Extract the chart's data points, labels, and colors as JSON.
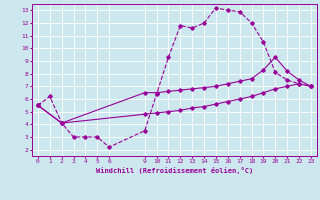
{
  "xlabel": "Windchill (Refroidissement éolien,°C)",
  "bg_color": "#cce8ee",
  "line_color": "#990099",
  "grid_color": "#ffffff",
  "xticks": [
    0,
    1,
    2,
    3,
    4,
    5,
    6,
    9,
    10,
    11,
    12,
    13,
    14,
    15,
    16,
    17,
    18,
    19,
    20,
    21,
    22,
    23
  ],
  "yticks": [
    2,
    3,
    4,
    5,
    6,
    7,
    8,
    9,
    10,
    11,
    12,
    13
  ],
  "xlim": [
    -0.5,
    23.5
  ],
  "ylim": [
    1.5,
    13.5
  ],
  "line1_x": [
    0,
    1,
    2,
    3,
    4,
    5,
    6,
    9,
    10,
    11,
    12,
    13,
    14,
    15,
    16,
    17,
    18,
    19,
    20,
    21,
    22,
    23
  ],
  "line1_y": [
    5.5,
    6.2,
    4.1,
    3.0,
    3.0,
    3.0,
    2.2,
    3.5,
    6.4,
    9.3,
    11.8,
    11.6,
    12.0,
    13.2,
    13.0,
    12.9,
    12.0,
    10.5,
    8.1,
    7.5,
    7.2,
    7.0
  ],
  "line2_x": [
    0,
    2,
    9,
    10,
    11,
    12,
    13,
    14,
    15,
    16,
    17,
    18,
    19,
    20,
    21,
    22,
    23
  ],
  "line2_y": [
    5.5,
    4.1,
    6.5,
    6.5,
    6.6,
    6.7,
    6.8,
    6.9,
    7.0,
    7.2,
    7.4,
    7.6,
    8.3,
    9.3,
    8.2,
    7.5,
    7.0
  ],
  "line3_x": [
    0,
    2,
    9,
    10,
    11,
    12,
    13,
    14,
    15,
    16,
    17,
    18,
    19,
    20,
    21,
    22,
    23
  ],
  "line3_y": [
    5.5,
    4.1,
    4.8,
    4.9,
    5.0,
    5.1,
    5.3,
    5.4,
    5.6,
    5.8,
    6.0,
    6.2,
    6.5,
    6.8,
    7.0,
    7.2,
    7.0
  ]
}
